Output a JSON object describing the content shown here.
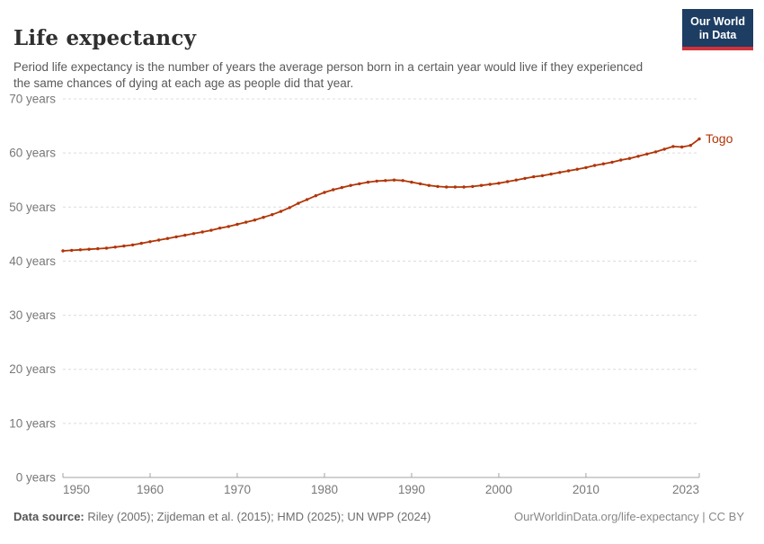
{
  "header": {
    "title": "Life expectancy",
    "subtitle": "Period life expectancy is the number of years the average person born in a certain year would live if they experienced the same chances of dying at each age as people did that year."
  },
  "logo": {
    "text": "Our World\nin Data",
    "bg_color": "#1d3d63",
    "stripe_color": "#d13239"
  },
  "chart_data": {
    "type": "line",
    "title": "Life expectancy",
    "entity_label": "Togo",
    "line_color": "#b13507",
    "units": "years",
    "xlim": [
      1950,
      2023
    ],
    "ylim": [
      0,
      70
    ],
    "grid": "dashed horizontal",
    "legend_position": "end-of-line label",
    "x": [
      1950,
      1951,
      1952,
      1953,
      1954,
      1955,
      1956,
      1957,
      1958,
      1959,
      1960,
      1961,
      1962,
      1963,
      1964,
      1965,
      1966,
      1967,
      1968,
      1969,
      1970,
      1971,
      1972,
      1973,
      1974,
      1975,
      1976,
      1977,
      1978,
      1979,
      1980,
      1981,
      1982,
      1983,
      1984,
      1985,
      1986,
      1987,
      1988,
      1989,
      1990,
      1991,
      1992,
      1993,
      1994,
      1995,
      1996,
      1997,
      1998,
      1999,
      2000,
      2001,
      2002,
      2003,
      2004,
      2005,
      2006,
      2007,
      2008,
      2009,
      2010,
      2011,
      2012,
      2013,
      2014,
      2015,
      2016,
      2017,
      2018,
      2019,
      2020,
      2021,
      2022,
      2023
    ],
    "series": [
      {
        "name": "Togo",
        "values": [
          41.9,
          42.0,
          42.1,
          42.2,
          42.3,
          42.4,
          42.6,
          42.8,
          43.0,
          43.3,
          43.6,
          43.9,
          44.2,
          44.5,
          44.8,
          45.1,
          45.4,
          45.7,
          46.1,
          46.4,
          46.8,
          47.2,
          47.6,
          48.1,
          48.6,
          49.2,
          49.9,
          50.7,
          51.4,
          52.1,
          52.7,
          53.2,
          53.6,
          54.0,
          54.3,
          54.6,
          54.8,
          54.9,
          55.0,
          54.9,
          54.6,
          54.3,
          54.0,
          53.8,
          53.7,
          53.7,
          53.7,
          53.8,
          54.0,
          54.2,
          54.4,
          54.7,
          55.0,
          55.3,
          55.6,
          55.8,
          56.1,
          56.4,
          56.7,
          57.0,
          57.3,
          57.7,
          58.0,
          58.3,
          58.7,
          59.0,
          59.4,
          59.8,
          60.2,
          60.7,
          61.2,
          61.1,
          61.4,
          62.6
        ]
      }
    ],
    "y_ticks": [
      {
        "v": 0,
        "label": "0 years"
      },
      {
        "v": 10,
        "label": "10 years"
      },
      {
        "v": 20,
        "label": "20 years"
      },
      {
        "v": 30,
        "label": "30 years"
      },
      {
        "v": 40,
        "label": "40 years"
      },
      {
        "v": 50,
        "label": "50 years"
      },
      {
        "v": 60,
        "label": "60 years"
      },
      {
        "v": 70,
        "label": "70 years"
      }
    ],
    "x_ticks": [
      {
        "v": 1950,
        "label": "1950"
      },
      {
        "v": 1960,
        "label": "1960"
      },
      {
        "v": 1970,
        "label": "1970"
      },
      {
        "v": 1980,
        "label": "1980"
      },
      {
        "v": 1990,
        "label": "1990"
      },
      {
        "v": 2000,
        "label": "2000"
      },
      {
        "v": 2010,
        "label": "2010"
      },
      {
        "v": 2023,
        "label": "2023"
      }
    ]
  },
  "footer": {
    "source_label": "Data source:",
    "source_text": " Riley (2005); Zijdeman et al. (2015); HMD (2025); UN WPP (2024)",
    "link_text": "OurWorldinData.org/life-expectancy | CC BY"
  }
}
